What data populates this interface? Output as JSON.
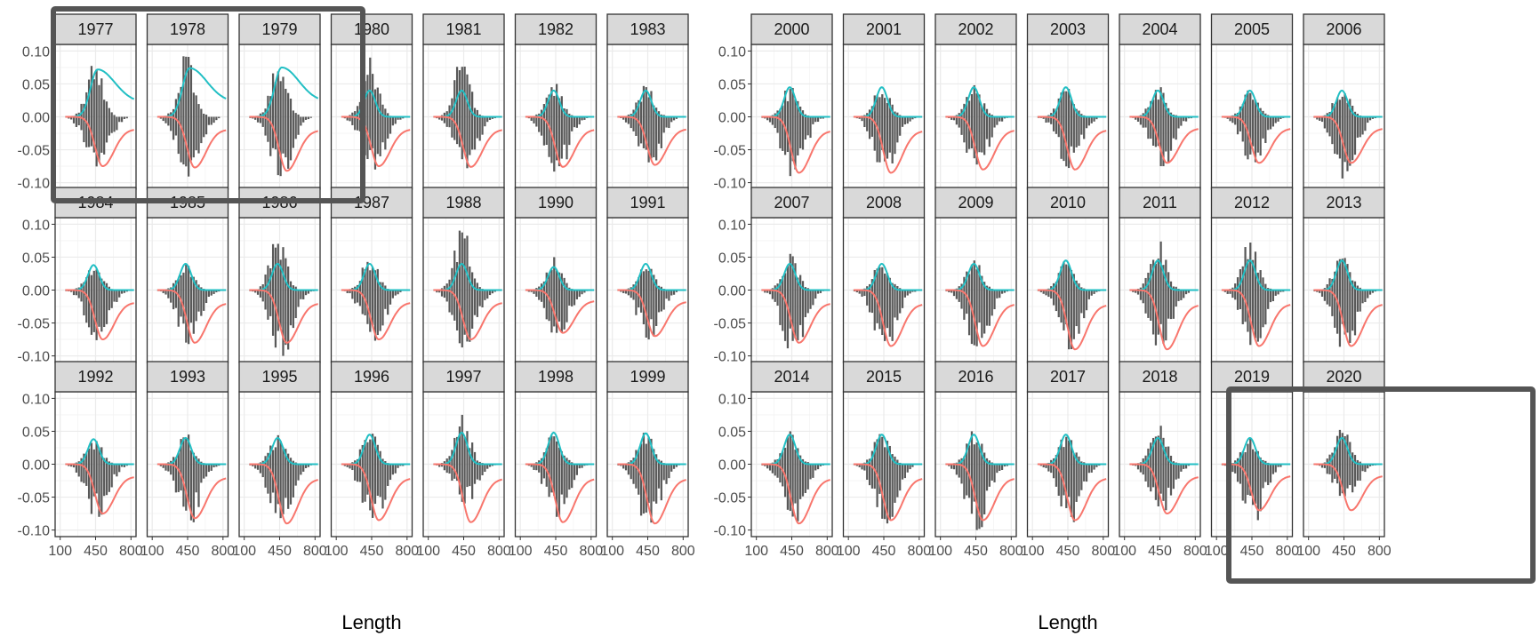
{
  "colors": {
    "bar": "#595959",
    "top_curve": "#22bfc4",
    "bottom_curve": "#f8766d",
    "strip_fill": "#d9d9d9",
    "panel_border": "#333333",
    "grid": "#ebebeb",
    "highlight": "#555555"
  },
  "chart_data": [
    {
      "type": "bar",
      "facet_layout": "3 rows x 7 columns",
      "xlabel": "Length",
      "ylabel": "",
      "xlim": [
        50,
        850
      ],
      "ylim": [
        -0.11,
        0.11
      ],
      "x_ticks": [
        100,
        450,
        800
      ],
      "x_tick_labels": [
        "100",
        "450",
        "800"
      ],
      "y_ticks": [
        0.1,
        0.05,
        0.0,
        -0.05,
        -0.1
      ],
      "y_tick_labels": [
        "0.10",
        "0.05",
        "0.00",
        "-0.05",
        "-0.10"
      ],
      "grid": true,
      "legend": "none",
      "highlighted_facets": [
        "1977",
        "1978",
        "1979"
      ],
      "panels": [
        "1977",
        "1978",
        "1979",
        "1980",
        "1981",
        "1982",
        "1983",
        "1984",
        "1985",
        "1986",
        "1987",
        "1988",
        "1990",
        "1991",
        "1992",
        "1993",
        "1995",
        "1996",
        "1997",
        "1998",
        "1999"
      ],
      "peaks": {
        "1977": {
          "top_curve_peak": 0.072,
          "bottom_curve_min": -0.075,
          "top_bar_max": 0.085,
          "bottom_bar_min": -0.085
        },
        "1978": {
          "top_curve_peak": 0.074,
          "bottom_curve_min": -0.077,
          "top_bar_max": 0.092,
          "bottom_bar_min": -0.093
        },
        "1979": {
          "top_curve_peak": 0.075,
          "bottom_curve_min": -0.082,
          "top_bar_max": 0.09,
          "bottom_bar_min": -0.09
        },
        "1980": {
          "top_curve_peak": 0.04,
          "bottom_curve_min": -0.075,
          "top_bar_max": 0.09,
          "bottom_bar_min": -0.08
        },
        "1981": {
          "top_curve_peak": 0.04,
          "bottom_curve_min": -0.076,
          "top_bar_max": 0.088,
          "bottom_bar_min": -0.08
        },
        "1982": {
          "top_curve_peak": 0.04,
          "bottom_curve_min": -0.076,
          "top_bar_max": 0.05,
          "bottom_bar_min": -0.085
        },
        "1983": {
          "top_curve_peak": 0.04,
          "bottom_curve_min": -0.073,
          "top_bar_max": 0.047,
          "bottom_bar_min": -0.08
        },
        "1984": {
          "top_curve_peak": 0.038,
          "bottom_curve_min": -0.075,
          "top_bar_max": 0.04,
          "bottom_bar_min": -0.08
        },
        "1985": {
          "top_curve_peak": 0.04,
          "bottom_curve_min": -0.08,
          "top_bar_max": 0.04,
          "bottom_bar_min": -0.082
        },
        "1986": {
          "top_curve_peak": 0.04,
          "bottom_curve_min": -0.08,
          "top_bar_max": 0.085,
          "bottom_bar_min": -0.1
        },
        "1987": {
          "top_curve_peak": 0.04,
          "bottom_curve_min": -0.075,
          "top_bar_max": 0.05,
          "bottom_bar_min": -0.08
        },
        "1988": {
          "top_curve_peak": 0.04,
          "bottom_curve_min": -0.075,
          "top_bar_max": 0.095,
          "bottom_bar_min": -0.09
        },
        "1990": {
          "top_curve_peak": 0.035,
          "bottom_curve_min": -0.065,
          "top_bar_max": 0.05,
          "bottom_bar_min": -0.07
        },
        "1991": {
          "top_curve_peak": 0.04,
          "bottom_curve_min": -0.07,
          "top_bar_max": 0.04,
          "bottom_bar_min": -0.075
        },
        "1992": {
          "top_curve_peak": 0.038,
          "bottom_curve_min": -0.075,
          "top_bar_max": 0.04,
          "bottom_bar_min": -0.08
        },
        "1993": {
          "top_curve_peak": 0.04,
          "bottom_curve_min": -0.082,
          "top_bar_max": 0.045,
          "bottom_bar_min": -0.09
        },
        "1995": {
          "top_curve_peak": 0.04,
          "bottom_curve_min": -0.09,
          "top_bar_max": 0.045,
          "bottom_bar_min": -0.1
        },
        "1996": {
          "top_curve_peak": 0.045,
          "bottom_curve_min": -0.085,
          "top_bar_max": 0.05,
          "bottom_bar_min": -0.09
        },
        "1997": {
          "top_curve_peak": 0.048,
          "bottom_curve_min": -0.088,
          "top_bar_max": 0.075,
          "bottom_bar_min": -0.06
        },
        "1998": {
          "top_curve_peak": 0.048,
          "bottom_curve_min": -0.088,
          "top_bar_max": 0.05,
          "bottom_bar_min": -0.08
        },
        "1999": {
          "top_curve_peak": 0.047,
          "bottom_curve_min": -0.09,
          "top_bar_max": 0.05,
          "bottom_bar_min": -0.095
        }
      }
    },
    {
      "type": "bar",
      "facet_layout": "3 rows x 7 columns",
      "xlabel": "Length",
      "ylabel": "",
      "xlim": [
        50,
        850
      ],
      "ylim": [
        -0.11,
        0.11
      ],
      "x_ticks": [
        100,
        450,
        800
      ],
      "x_tick_labels": [
        "100",
        "450",
        "800"
      ],
      "y_ticks": [
        0.1,
        0.05,
        0.0,
        -0.05,
        -0.1
      ],
      "y_tick_labels": [
        "0.10",
        "0.05",
        "0.00",
        "-0.05",
        "-0.10"
      ],
      "grid": true,
      "legend": "none",
      "highlighted_facets": [
        "2018",
        "2019",
        "2020"
      ],
      "panels": [
        "2000",
        "2001",
        "2002",
        "2003",
        "2004",
        "2005",
        "2006",
        "2007",
        "2008",
        "2009",
        "2010",
        "2011",
        "2012",
        "2013",
        "2014",
        "2015",
        "2016",
        "2017",
        "2018",
        "2019",
        "2020"
      ],
      "peaks": {
        "2000": {
          "top_curve_peak": 0.045,
          "bottom_curve_min": -0.085,
          "top_bar_max": 0.045,
          "bottom_bar_min": -0.095
        },
        "2001": {
          "top_curve_peak": 0.045,
          "bottom_curve_min": -0.085,
          "top_bar_max": 0.048,
          "bottom_bar_min": -0.085
        },
        "2002": {
          "top_curve_peak": 0.045,
          "bottom_curve_min": -0.08,
          "top_bar_max": 0.048,
          "bottom_bar_min": -0.082
        },
        "2003": {
          "top_curve_peak": 0.045,
          "bottom_curve_min": -0.08,
          "top_bar_max": 0.048,
          "bottom_bar_min": -0.08
        },
        "2004": {
          "top_curve_peak": 0.04,
          "bottom_curve_min": -0.07,
          "top_bar_max": 0.045,
          "bottom_bar_min": -0.075
        },
        "2005": {
          "top_curve_peak": 0.04,
          "bottom_curve_min": -0.07,
          "top_bar_max": 0.04,
          "bottom_bar_min": -0.075
        },
        "2006": {
          "top_curve_peak": 0.04,
          "bottom_curve_min": -0.07,
          "top_bar_max": 0.045,
          "bottom_bar_min": -0.1
        },
        "2007": {
          "top_curve_peak": 0.04,
          "bottom_curve_min": -0.08,
          "top_bar_max": 0.055,
          "bottom_bar_min": -0.1
        },
        "2008": {
          "top_curve_peak": 0.04,
          "bottom_curve_min": -0.085,
          "top_bar_max": 0.045,
          "bottom_bar_min": -0.09
        },
        "2009": {
          "top_curve_peak": 0.04,
          "bottom_curve_min": -0.085,
          "top_bar_max": 0.045,
          "bottom_bar_min": -0.09
        },
        "2010": {
          "top_curve_peak": 0.045,
          "bottom_curve_min": -0.09,
          "top_bar_max": 0.045,
          "bottom_bar_min": -0.09
        },
        "2011": {
          "top_curve_peak": 0.045,
          "bottom_curve_min": -0.09,
          "top_bar_max": 0.075,
          "bottom_bar_min": -0.09
        },
        "2012": {
          "top_curve_peak": 0.045,
          "bottom_curve_min": -0.085,
          "top_bar_max": 0.075,
          "bottom_bar_min": -0.09
        },
        "2013": {
          "top_curve_peak": 0.045,
          "bottom_curve_min": -0.085,
          "top_bar_max": 0.065,
          "bottom_bar_min": -0.09
        },
        "2014": {
          "top_curve_peak": 0.045,
          "bottom_curve_min": -0.09,
          "top_bar_max": 0.05,
          "bottom_bar_min": -0.095
        },
        "2015": {
          "top_curve_peak": 0.045,
          "bottom_curve_min": -0.085,
          "top_bar_max": 0.05,
          "bottom_bar_min": -0.09
        },
        "2016": {
          "top_curve_peak": 0.045,
          "bottom_curve_min": -0.085,
          "top_bar_max": 0.05,
          "bottom_bar_min": -0.1
        },
        "2017": {
          "top_curve_peak": 0.045,
          "bottom_curve_min": -0.085,
          "top_bar_max": 0.045,
          "bottom_bar_min": -0.09
        },
        "2018": {
          "top_curve_peak": 0.04,
          "bottom_curve_min": -0.075,
          "top_bar_max": 0.062,
          "bottom_bar_min": -0.07
        },
        "2019": {
          "top_curve_peak": 0.04,
          "bottom_curve_min": -0.07,
          "top_bar_max": 0.04,
          "bottom_bar_min": -0.085
        },
        "2020": {
          "top_curve_peak": 0.04,
          "bottom_curve_min": -0.07,
          "top_bar_max": 0.06,
          "bottom_bar_min": -0.06
        }
      }
    }
  ]
}
